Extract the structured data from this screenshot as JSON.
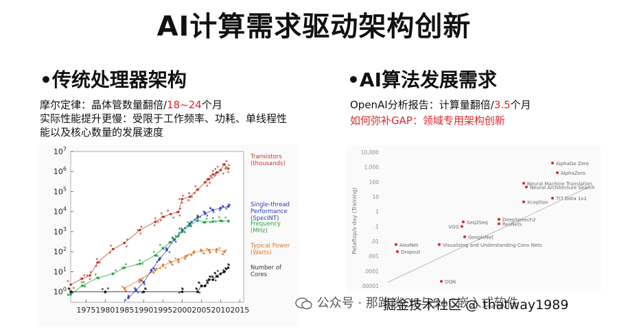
{
  "title": "AI计算需求驱动架构创新",
  "left": {
    "heading": "•传统处理器架构",
    "desc_line1_prefix": "摩尔定律：晶体管数量翻倍/",
    "desc_line1_highlight": "18~24",
    "desc_line1_suffix": "个月",
    "desc_line2": "实际性能提升更慢：受限于工作频率、功耗、单线程性",
    "desc_line3": "能以及核心数量的发展速度"
  },
  "right": {
    "heading": "•AI算法发展需求",
    "desc_line1_prefix": "OpenAI分析报告：计算量翻倍/",
    "desc_line1_highlight": "3.5",
    "desc_line1_suffix": "个月",
    "desc_line2": "如何弥补GAP：领域专用架构创新"
  },
  "left_chart": {
    "type": "scatter",
    "title": "",
    "xlabel": "",
    "ylabel": "",
    "log_y": true,
    "xlim": [
      1971,
      2016
    ],
    "ylim": [
      0.3,
      10000000
    ],
    "x_ticks": [
      "1975",
      "1980",
      "1985",
      "1990",
      "1995",
      "2000",
      "2005",
      "2010",
      "2015"
    ],
    "y_ticks": [
      "10^7",
      "10^6",
      "10^5",
      "10^4",
      "10^3",
      "10^2",
      "10^1",
      "10^0"
    ],
    "series": [
      {
        "name": "Transistors (thousands)",
        "color": "#c0392b",
        "points": [
          [
            1971,
            2.3
          ],
          [
            1974,
            4.5
          ],
          [
            1976,
            6.5
          ],
          [
            1978,
            29
          ],
          [
            1982,
            134
          ],
          [
            1985,
            275
          ],
          [
            1989,
            1200
          ],
          [
            1993,
            3100
          ],
          [
            1995,
            5500
          ],
          [
            1997,
            7500
          ],
          [
            1999,
            9500
          ],
          [
            2000,
            42000
          ],
          [
            2002,
            55000
          ],
          [
            2004,
            125000
          ],
          [
            2006,
            291000
          ],
          [
            2007,
            410000
          ],
          [
            2008,
            730000
          ],
          [
            2009,
            900000
          ],
          [
            2010,
            1170000
          ],
          [
            2011,
            2270000
          ],
          [
            2012,
            1400000
          ]
        ]
      },
      {
        "name": "Single-thread Performance (SpecINT)",
        "color": "#2b3fb5",
        "points": [
          [
            1986,
            0.5
          ],
          [
            1988,
            1.2
          ],
          [
            1990,
            3
          ],
          [
            1992,
            12
          ],
          [
            1994,
            40
          ],
          [
            1996,
            120
          ],
          [
            1998,
            400
          ],
          [
            2000,
            1200
          ],
          [
            2002,
            2500
          ],
          [
            2004,
            5000
          ],
          [
            2006,
            8000
          ],
          [
            2008,
            12000
          ],
          [
            2010,
            15000
          ],
          [
            2012,
            18000
          ]
        ]
      },
      {
        "name": "Frequency (MHz)",
        "color": "#1fa83a",
        "points": [
          [
            1971,
            0.74
          ],
          [
            1974,
            2
          ],
          [
            1978,
            5
          ],
          [
            1982,
            8
          ],
          [
            1985,
            16
          ],
          [
            1989,
            25
          ],
          [
            1993,
            66
          ],
          [
            1995,
            150
          ],
          [
            1997,
            300
          ],
          [
            1999,
            600
          ],
          [
            2000,
            1000
          ],
          [
            2002,
            2000
          ],
          [
            2004,
            3600
          ],
          [
            2006,
            3000
          ],
          [
            2008,
            3200
          ],
          [
            2010,
            3500
          ],
          [
            2012,
            3400
          ]
        ]
      },
      {
        "name": "Typical Power (Watts)",
        "color": "#e0752b",
        "points": [
          [
            1985,
            1.5
          ],
          [
            1989,
            4
          ],
          [
            1993,
            12
          ],
          [
            1995,
            20
          ],
          [
            1997,
            30
          ],
          [
            1999,
            40
          ],
          [
            2001,
            60
          ],
          [
            2003,
            90
          ],
          [
            2005,
            110
          ],
          [
            2007,
            120
          ],
          [
            2009,
            130
          ],
          [
            2011,
            100
          ]
        ]
      },
      {
        "name": "Number of Cores",
        "color": "#111111",
        "points": [
          [
            1971,
            1
          ],
          [
            1980,
            1
          ],
          [
            1990,
            1
          ],
          [
            2000,
            1
          ],
          [
            2004,
            1
          ],
          [
            2005,
            2
          ],
          [
            2006,
            2
          ],
          [
            2007,
            4
          ],
          [
            2008,
            4
          ],
          [
            2009,
            6
          ],
          [
            2010,
            8
          ],
          [
            2011,
            10
          ],
          [
            2012,
            16
          ]
        ]
      }
    ]
  },
  "right_chart": {
    "type": "scatter",
    "title": "",
    "xlabel": "",
    "ylabel": "Petaflop/s-day (Training)",
    "log_y": true,
    "y_ticks": [
      "10,000",
      "1,000",
      "100",
      "10",
      "1",
      ".1",
      ".01",
      ".001",
      ".0001",
      ".00001"
    ],
    "points": [
      {
        "label": "AlphaGo Zero",
        "y": 1860
      },
      {
        "label": "AlphaZero",
        "y": 410
      },
      {
        "label": "Neural Machine Translation",
        "y": 81
      },
      {
        "label": "Neural Architecture Search",
        "y": 45
      },
      {
        "label": "Xception",
        "y": 4.5
      },
      {
        "label": "TI7 Dota 1v1",
        "y": 8
      },
      {
        "label": "VGG",
        "y": 0.1
      },
      {
        "label": "Seq2Seq",
        "y": 0.2
      },
      {
        "label": "DeepSpeech2",
        "y": 0.3
      },
      {
        "label": "ResNets",
        "y": 0.15
      },
      {
        "label": "GoogleNet",
        "y": 0.02
      },
      {
        "label": "AlexNet",
        "y": 0.006
      },
      {
        "label": "Dropout",
        "y": 0.002
      },
      {
        "label": "Visualizing and Understanding Conv Nets",
        "y": 0.006
      },
      {
        "label": "DQN",
        "y": 2e-05
      }
    ]
  },
  "watermark": {
    "label": "公众号 · 那路谈OS与SoC嵌入式软件",
    "overlay": "掘金技术社区 @ thatway1989"
  }
}
